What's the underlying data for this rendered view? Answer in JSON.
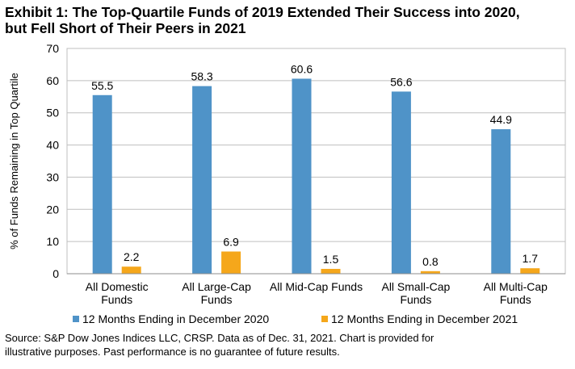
{
  "title": {
    "line1": "Exhibit 1: The Top-Quartile Funds of 2019 Extended Their Success into 2020,",
    "line2": "but Fell Short of Their Peers in 2021"
  },
  "source": {
    "line1": "Source: S&P Dow Jones Indices LLC, CRSP.  Data as of Dec. 31, 2021.  Chart is provided for",
    "line2": "illustrative purposes.  Past performance is no guarantee of future results."
  },
  "chart_data": {
    "type": "bar",
    "categories": [
      [
        "All Domestic",
        "Funds"
      ],
      [
        "All Large-Cap",
        "Funds"
      ],
      [
        "All Mid-Cap Funds"
      ],
      [
        "All Small-Cap",
        "Funds"
      ],
      [
        "All Multi-Cap",
        "Funds"
      ]
    ],
    "series": [
      {
        "name": "12 Months Ending in December 2020",
        "color": "#4f93c8",
        "values": [
          55.5,
          58.3,
          60.6,
          56.6,
          44.9
        ]
      },
      {
        "name": "12 Months Ending in December 2021",
        "color": "#f5a71b",
        "values": [
          2.2,
          6.9,
          1.5,
          0.8,
          1.7
        ]
      }
    ],
    "ylabel": "% of Funds Remaining in Top Quartile",
    "ylim": [
      0,
      70
    ],
    "yticks": [
      0,
      10,
      20,
      30,
      40,
      50,
      60,
      70
    ],
    "grid": true,
    "legend": "bottom"
  }
}
